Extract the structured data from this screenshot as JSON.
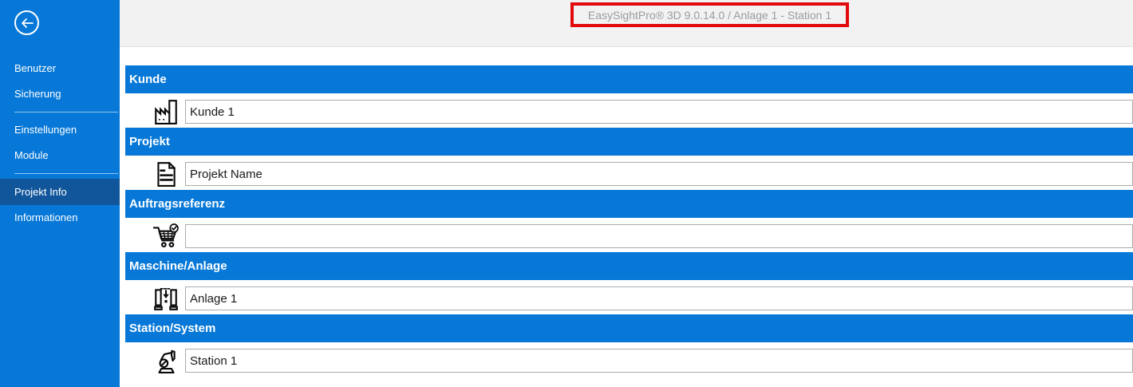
{
  "window": {
    "title": "EasySightPro® 3D 9.0.14.0 / Anlage 1 - Station 1"
  },
  "sidebar": {
    "back_icon": "back-arrow-icon",
    "items": [
      {
        "label": "Benutzer",
        "selected": false
      },
      {
        "label": "Sicherung",
        "selected": false
      },
      {
        "divider": true
      },
      {
        "label": "Einstellungen",
        "selected": false
      },
      {
        "label": "Module",
        "selected": false
      },
      {
        "divider": true
      },
      {
        "label": "Projekt Info",
        "selected": true
      },
      {
        "label": "Informationen",
        "selected": false
      }
    ]
  },
  "sections": [
    {
      "label": "Kunde",
      "icon": "factory-icon",
      "value": "Kunde 1",
      "placeholder": ""
    },
    {
      "label": "Projekt",
      "icon": "document-icon",
      "value": "Projekt Name",
      "placeholder": ""
    },
    {
      "label": "Auftragsreferenz",
      "icon": "cart-check-icon",
      "value": "",
      "placeholder": ""
    },
    {
      "label": "Maschine/Anlage",
      "icon": "machine-icon",
      "value": "Anlage 1",
      "placeholder": ""
    },
    {
      "label": "Station/System",
      "icon": "robot-arm-icon",
      "value": "Station 1",
      "placeholder": ""
    }
  ],
  "colors": {
    "accent_blue": "#0778D7",
    "selected_blue": "#11569B",
    "annotation_red": "#E10B0B",
    "topbar_gray": "#F2F2F2",
    "title_text_gray": "#9B9B9B",
    "input_border": "#ABABAB"
  }
}
